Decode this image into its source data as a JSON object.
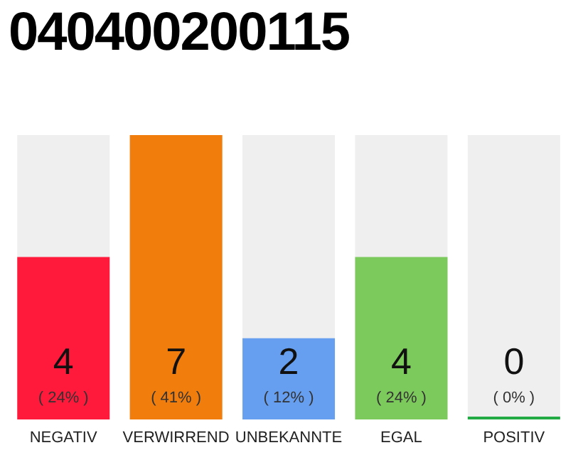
{
  "chart_data": {
    "type": "bar",
    "title": "040400200115",
    "categories": [
      "NEGATIV",
      "VERWIRREND",
      "UNBEKANNTE",
      "EGAL",
      "POSITIV"
    ],
    "values": [
      4,
      7,
      2,
      4,
      0
    ],
    "colors": [
      "#ff1a3c",
      "#f07d0c",
      "#669ef0",
      "#7dca5c",
      "#22aa44"
    ],
    "value_labels": [
      "4 ( 24% )",
      "7 ( 41% )",
      "2 ( 12% )",
      "4 ( 24% )",
      "0 ( 0% )"
    ],
    "tick_labels": "x",
    "grid": false,
    "legend": false
  }
}
